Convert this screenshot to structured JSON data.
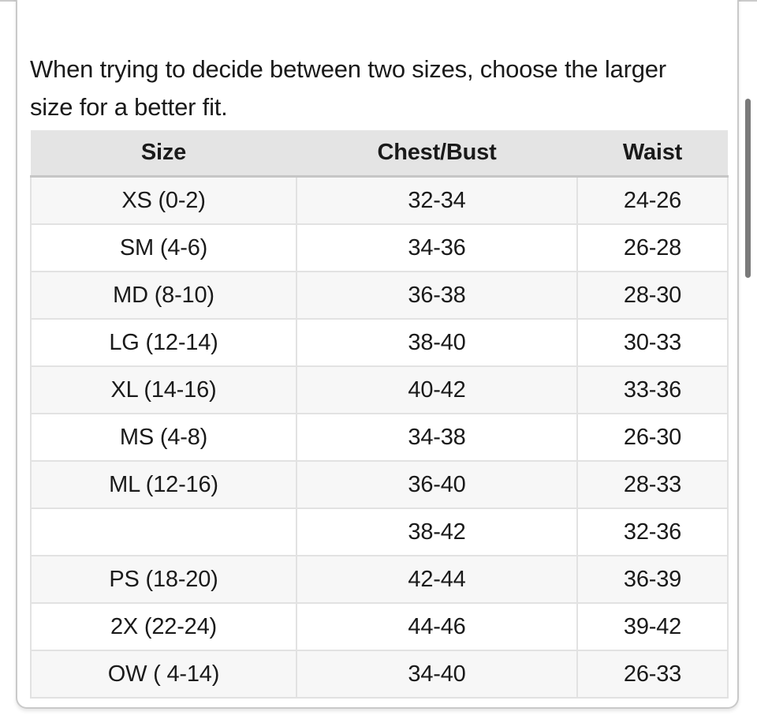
{
  "page": {
    "intro_text": "When trying to decide between two sizes, choose the larger size for a better fit."
  },
  "size_chart": {
    "columns": [
      "Size",
      "Chest/Bust",
      "Waist"
    ],
    "rows": [
      {
        "size": "XS (0-2)",
        "chest_bust": "32-34",
        "waist": "24-26"
      },
      {
        "size": "SM (4-6)",
        "chest_bust": "34-36",
        "waist": "26-28"
      },
      {
        "size": "MD (8-10)",
        "chest_bust": "36-38",
        "waist": "28-30"
      },
      {
        "size": "LG (12-14)",
        "chest_bust": "38-40",
        "waist": "30-33"
      },
      {
        "size": "XL (14-16)",
        "chest_bust": "40-42",
        "waist": "33-36"
      },
      {
        "size": "MS (4-8)",
        "chest_bust": "34-38",
        "waist": "26-30"
      },
      {
        "size": "ML (12-16)",
        "chest_bust": "36-40",
        "waist": "28-33"
      },
      {
        "size": "",
        "chest_bust": "38-42",
        "waist": "32-36"
      },
      {
        "size": "PS (18-20)",
        "chest_bust": "42-44",
        "waist": "36-39"
      },
      {
        "size": "2X (22-24)",
        "chest_bust": "44-46",
        "waist": "39-42"
      },
      {
        "size": "OW ( 4-14)",
        "chest_bust": "34-40",
        "waist": "26-33"
      }
    ]
  },
  "colors": {
    "header_bg": "#e4e4e4",
    "shaded_row_bg": "#f7f7f7",
    "cell_border": "#e2e2e2",
    "header_bottom_border": "#c6c6c6",
    "card_border": "#c9c9c9",
    "scrollbar_thumb": "#7a7a7a"
  }
}
